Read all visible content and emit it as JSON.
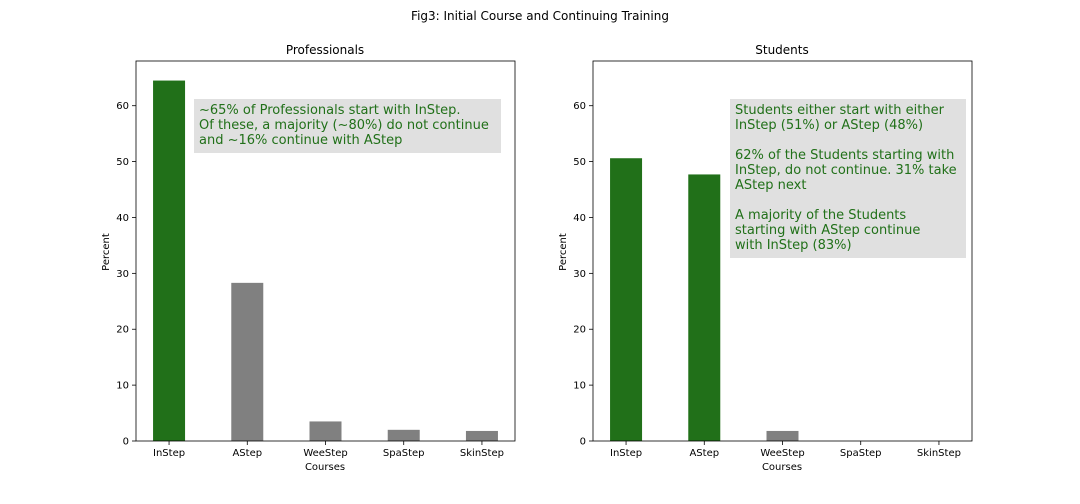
{
  "figure_title": "Fig3: Initial Course and Continuing Training",
  "chart_data": [
    {
      "type": "bar",
      "title": "Professionals",
      "xlabel": "Courses",
      "ylabel": "Percent",
      "categories": [
        "InStep",
        "AStep",
        "WeeStep",
        "SpaStep",
        "SkinStep"
      ],
      "values": [
        64.5,
        28.3,
        3.5,
        2.0,
        1.8
      ],
      "ylim": [
        0,
        68
      ],
      "yticks": [
        0,
        10,
        20,
        30,
        40,
        50,
        60
      ],
      "bar_colors": [
        "#217019",
        "#808080",
        "#808080",
        "#808080",
        "#808080"
      ],
      "annotation": {
        "lines": [
          "~65% of Professionals start with InStep.",
          "Of these, a majority (~80%) do not continue",
          "and ~16% continue with AStep"
        ],
        "text_color": "#217019",
        "box_color": "#e0e0e0"
      }
    },
    {
      "type": "bar",
      "title": "Students",
      "xlabel": "Courses",
      "ylabel": "Percent",
      "categories": [
        "InStep",
        "AStep",
        "WeeStep",
        "SpaStep",
        "SkinStep"
      ],
      "values": [
        50.6,
        47.7,
        1.8,
        0,
        0
      ],
      "ylim": [
        0,
        68
      ],
      "yticks": [
        0,
        10,
        20,
        30,
        40,
        50,
        60
      ],
      "bar_colors": [
        "#217019",
        "#217019",
        "#808080",
        "#808080",
        "#808080"
      ],
      "annotation": {
        "lines": [
          "Students either start with either",
          "InStep (51%) or AStep (48%)",
          "",
          "62% of the Students starting with",
          "InStep, do not continue. 31% take",
          "AStep next",
          "",
          "A majority of the Students",
          "starting with AStep continue",
          "with InStep (83%)"
        ],
        "text_color": "#217019",
        "box_color": "#e0e0e0"
      }
    }
  ]
}
